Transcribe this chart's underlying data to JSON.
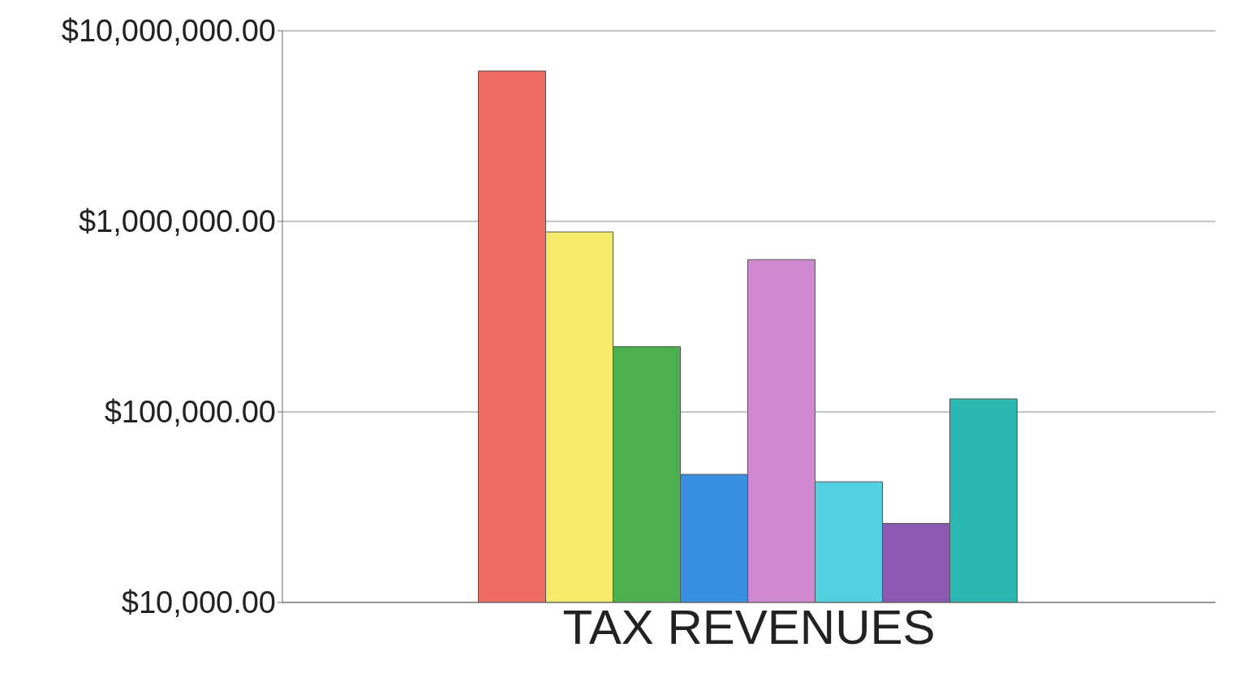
{
  "chart_data": {
    "type": "bar",
    "categories": [
      "TAX REVENUES"
    ],
    "series": [
      {
        "color": "#ee6b64",
        "values": [
          6150000
        ]
      },
      {
        "color": "#f5ea6a",
        "values": [
          880000
        ]
      },
      {
        "color": "#4cb050",
        "values": [
          220000
        ]
      },
      {
        "color": "#3a90e0",
        "values": [
          47000
        ]
      },
      {
        "color": "#d088d0",
        "values": [
          630000
        ]
      },
      {
        "color": "#55d0e0",
        "values": [
          43000
        ]
      },
      {
        "color": "#8a5ab0",
        "values": [
          26000
        ]
      },
      {
        "color": "#2ab8b0",
        "values": [
          117000
        ]
      }
    ],
    "log": "y",
    "ylim": [
      10000,
      10000000
    ],
    "yticks": [
      {
        "value": 10000,
        "label": "$10,000.00"
      },
      {
        "value": 100000,
        "label": "$100,000.00"
      },
      {
        "value": 1000000,
        "label": "$1,000,000.00"
      },
      {
        "value": 10000000,
        "label": "$10,000,000.00"
      }
    ],
    "grid": "y"
  }
}
